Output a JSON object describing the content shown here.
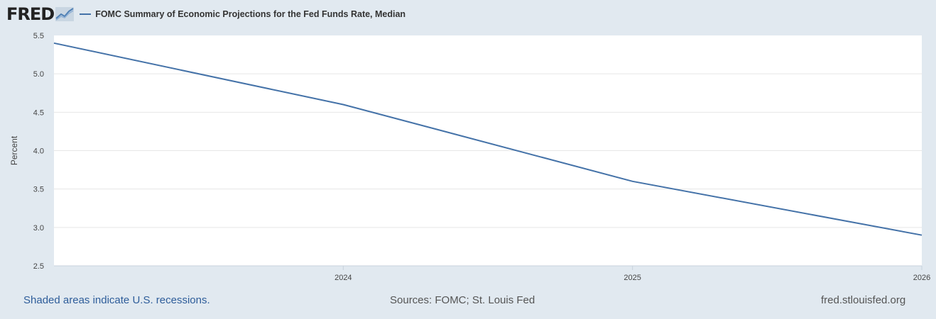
{
  "brand": {
    "logo_text": "FRED"
  },
  "legend": {
    "series_label": "FOMC Summary of Economic Projections for the Fed Funds Rate, Median"
  },
  "colors": {
    "series": "#4472a8",
    "background": "#e1e9f0",
    "plot_bg": "#ffffff",
    "grid": "#e6e6e6",
    "link": "#2e5d9a"
  },
  "chart_data": {
    "type": "line",
    "ylabel": "Percent",
    "xlabel": "",
    "ylim": [
      2.5,
      5.5
    ],
    "xlim": [
      2023,
      2026
    ],
    "yticks": [
      "2.5",
      "3.0",
      "3.5",
      "4.0",
      "4.5",
      "5.0",
      "5.5"
    ],
    "xticks": [
      "2024",
      "2025",
      "2026"
    ],
    "grid": true,
    "series": [
      {
        "name": "FOMC Summary of Economic Projections for the Fed Funds Rate, Median",
        "points": [
          [
            2023,
            5.4
          ],
          [
            2024,
            4.6
          ],
          [
            2025,
            3.6
          ],
          [
            2026,
            2.9
          ]
        ]
      }
    ]
  },
  "footer": {
    "recessions_note": "Shaded areas indicate U.S. recessions.",
    "sources": "Sources: FOMC; St. Louis Fed",
    "site": "fred.stlouisfed.org"
  }
}
